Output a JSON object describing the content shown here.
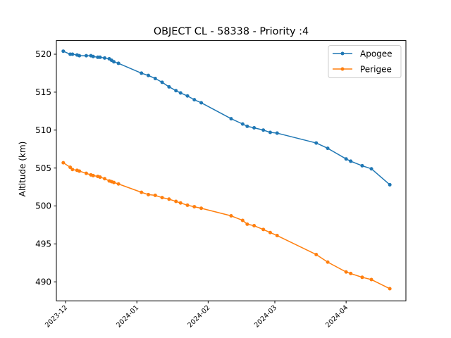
{
  "chart_data": {
    "type": "line",
    "title": "OBJECT CL - 58338 - Priority :4",
    "xlabel": "",
    "ylabel": "Altitude (km)",
    "x_axis": "date",
    "xlim": [
      "2023-11-27",
      "2024-04-27"
    ],
    "ylim": [
      487.5,
      521.8
    ],
    "x_ticks": [
      "2023-12-01",
      "2024-01-01",
      "2024-02-01",
      "2024-03-01",
      "2024-04-01"
    ],
    "x_tick_labels": [
      "2023-12",
      "2024-01",
      "2024-02",
      "2024-03",
      "2024-04"
    ],
    "y_ticks": [
      490,
      495,
      500,
      505,
      510,
      515,
      520
    ],
    "y_tick_labels": [
      "490",
      "495",
      "500",
      "505",
      "510",
      "515",
      "520"
    ],
    "grid": false,
    "legend": "top-right",
    "series": [
      {
        "name": "Apogee",
        "color": "#1f77b4",
        "points": [
          [
            "2023-11-30",
            520.4
          ],
          [
            "2023-12-03",
            520.0
          ],
          [
            "2023-12-04",
            520.0
          ],
          [
            "2023-12-06",
            519.9
          ],
          [
            "2023-12-07",
            519.8
          ],
          [
            "2023-12-10",
            519.8
          ],
          [
            "2023-12-12",
            519.8
          ],
          [
            "2023-12-13",
            519.7
          ],
          [
            "2023-12-15",
            519.6
          ],
          [
            "2023-12-16",
            519.6
          ],
          [
            "2023-12-18",
            519.5
          ],
          [
            "2023-12-20",
            519.4
          ],
          [
            "2023-12-21",
            519.2
          ],
          [
            "2023-12-22",
            519.0
          ],
          [
            "2023-12-24",
            518.8
          ],
          [
            "2024-01-03",
            517.5
          ],
          [
            "2024-01-06",
            517.2
          ],
          [
            "2024-01-09",
            516.8
          ],
          [
            "2024-01-12",
            516.3
          ],
          [
            "2024-01-15",
            515.7
          ],
          [
            "2024-01-18",
            515.2
          ],
          [
            "2024-01-20",
            514.9
          ],
          [
            "2024-01-23",
            514.5
          ],
          [
            "2024-01-26",
            514.0
          ],
          [
            "2024-01-29",
            513.6
          ],
          [
            "2024-02-11",
            511.5
          ],
          [
            "2024-02-16",
            510.8
          ],
          [
            "2024-02-18",
            510.5
          ],
          [
            "2024-02-21",
            510.3
          ],
          [
            "2024-02-25",
            510.0
          ],
          [
            "2024-02-28",
            509.7
          ],
          [
            "2024-03-02",
            509.6
          ],
          [
            "2024-03-19",
            508.3
          ],
          [
            "2024-03-24",
            507.6
          ],
          [
            "2024-04-01",
            506.2
          ],
          [
            "2024-04-03",
            505.9
          ],
          [
            "2024-04-08",
            505.3
          ],
          [
            "2024-04-12",
            504.9
          ],
          [
            "2024-04-20",
            502.8
          ]
        ]
      },
      {
        "name": "Perigee",
        "color": "#ff7f0e",
        "points": [
          [
            "2023-11-30",
            505.7
          ],
          [
            "2023-12-03",
            505.1
          ],
          [
            "2023-12-04",
            504.8
          ],
          [
            "2023-12-06",
            504.7
          ],
          [
            "2023-12-07",
            504.6
          ],
          [
            "2023-12-10",
            504.3
          ],
          [
            "2023-12-12",
            504.1
          ],
          [
            "2023-12-13",
            504.0
          ],
          [
            "2023-12-15",
            503.9
          ],
          [
            "2023-12-16",
            503.8
          ],
          [
            "2023-12-18",
            503.6
          ],
          [
            "2023-12-20",
            503.3
          ],
          [
            "2023-12-21",
            503.2
          ],
          [
            "2023-12-22",
            503.1
          ],
          [
            "2023-12-24",
            502.9
          ],
          [
            "2024-01-03",
            501.8
          ],
          [
            "2024-01-06",
            501.5
          ],
          [
            "2024-01-09",
            501.4
          ],
          [
            "2024-01-12",
            501.1
          ],
          [
            "2024-01-15",
            500.9
          ],
          [
            "2024-01-18",
            500.6
          ],
          [
            "2024-01-20",
            500.4
          ],
          [
            "2024-01-23",
            500.1
          ],
          [
            "2024-01-26",
            499.9
          ],
          [
            "2024-01-29",
            499.7
          ],
          [
            "2024-02-11",
            498.7
          ],
          [
            "2024-02-16",
            498.1
          ],
          [
            "2024-02-18",
            497.6
          ],
          [
            "2024-02-21",
            497.4
          ],
          [
            "2024-02-25",
            496.9
          ],
          [
            "2024-02-28",
            496.5
          ],
          [
            "2024-03-02",
            496.1
          ],
          [
            "2024-03-19",
            493.6
          ],
          [
            "2024-03-24",
            492.6
          ],
          [
            "2024-04-01",
            491.3
          ],
          [
            "2024-04-03",
            491.1
          ],
          [
            "2024-04-08",
            490.6
          ],
          [
            "2024-04-12",
            490.3
          ],
          [
            "2024-04-20",
            489.1
          ]
        ]
      }
    ]
  }
}
